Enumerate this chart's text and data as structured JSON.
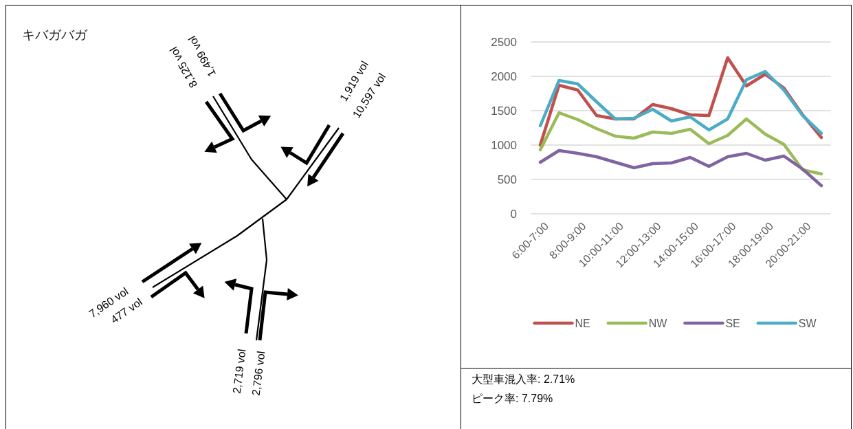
{
  "chart_data": [
    {
      "type": "other",
      "title": "キバガバガ",
      "annotations": [
        "8,125 vol",
        "1,499 vol",
        "1,919 vol",
        "10,597 vol",
        "7,960 vol",
        "477 vol",
        "2,719 vol",
        "2,796 vol"
      ]
    },
    {
      "type": "line",
      "categories": [
        "6:00-7:00",
        null,
        "8:00-9:00",
        null,
        "10:00-11:00",
        null,
        "12:00-13:00",
        null,
        "14:00-15:00",
        null,
        "16:00-17:00",
        null,
        "18:00-19:00",
        null,
        "20:00-21:00",
        null
      ],
      "series": [
        {
          "name": "NE",
          "color": "#c0504d",
          "values": [
            1000,
            1870,
            1800,
            1430,
            1380,
            1380,
            1590,
            1530,
            1440,
            1430,
            2270,
            1860,
            2030,
            1830,
            1440,
            1110
          ]
        },
        {
          "name": "NW",
          "color": "#9bbb59",
          "values": [
            930,
            1470,
            1370,
            1240,
            1130,
            1100,
            1190,
            1170,
            1230,
            1020,
            1140,
            1380,
            1160,
            1010,
            640,
            580
          ]
        },
        {
          "name": "SE",
          "color": "#8064a2",
          "values": [
            750,
            920,
            880,
            830,
            750,
            670,
            730,
            740,
            820,
            690,
            830,
            880,
            780,
            840,
            650,
            410
          ]
        },
        {
          "name": "SW",
          "color": "#4bacc6",
          "values": [
            1280,
            1940,
            1890,
            1630,
            1380,
            1390,
            1520,
            1350,
            1410,
            1220,
            1380,
            1950,
            2070,
            1800,
            1430,
            1170
          ]
        }
      ],
      "ylim": [
        0,
        2500
      ],
      "yticks": [
        0,
        500,
        1000,
        1500,
        2000,
        2500
      ],
      "grid": "y",
      "legend": "bottom"
    },
    {
      "type": "other",
      "annotations": [
        "大型車混入率: 2.71%",
        "ピーク率: 7.79%"
      ]
    }
  ]
}
